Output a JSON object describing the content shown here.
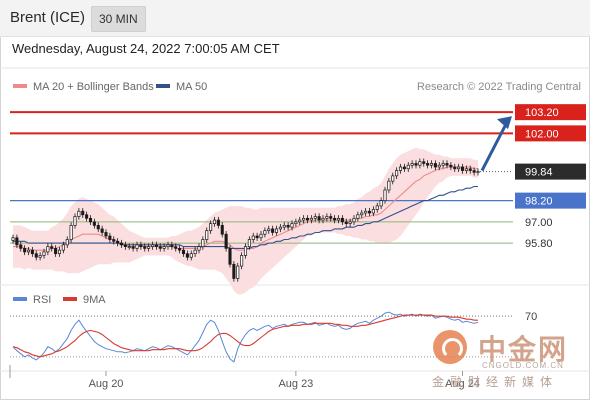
{
  "header": {
    "instrument": "Brent (ICE)",
    "timeframe": "30 MIN",
    "datetime": "Wednesday, August 24, 2022 7:00:05 AM CET"
  },
  "legend": {
    "ma20_label": "MA 20 + Bollinger Bands",
    "ma50_label": "MA 50",
    "credit": "Research © 2022 Trading Central",
    "rsi_label": "RSI",
    "ma9_label": "9MA"
  },
  "watermark": {
    "name": "中金网",
    "url": "CNGOLD.COM.CN",
    "subtitle": "金融财经新媒体"
  },
  "colors": {
    "resistance": "#d9221c",
    "support": "#4a74c9",
    "support_lower": "#8db47a",
    "ma20": "#f08a8a",
    "ma50": "#344f8a",
    "band_fill": "#fbdfe0",
    "rsi": "#5b86d6",
    "rsi_ma": "#d93a30",
    "price_badge": "#2c2c2c",
    "arrow": "#2f5b9c",
    "candle_up": "#1a1a1a",
    "candle_down": "#1a1a1a"
  },
  "chart_data": {
    "type": "candlestick",
    "instrument": "Brent (ICE)",
    "interval": "30 MIN",
    "x_ticks": [
      "Aug 20",
      "Aug 23",
      "Aug 24"
    ],
    "price_ylim": [
      93.6,
      104.0
    ],
    "current_price": 99.84,
    "levels": [
      {
        "value": 103.2,
        "label": "103.20",
        "kind": "resistance"
      },
      {
        "value": 102.0,
        "label": "102.00",
        "kind": "resistance"
      },
      {
        "value": 98.2,
        "label": "98.20",
        "kind": "support"
      },
      {
        "value": 97.0,
        "label": "97.00",
        "kind": "support"
      },
      {
        "value": 95.8,
        "label": "95.80",
        "kind": "support"
      }
    ],
    "close": [
      96.1,
      95.7,
      95.5,
      95.3,
      95.4,
      95.2,
      95.0,
      95.1,
      95.3,
      95.6,
      95.5,
      95.2,
      95.4,
      95.7,
      96.0,
      96.8,
      97.3,
      97.6,
      97.4,
      97.2,
      97.0,
      96.8,
      96.6,
      96.4,
      96.2,
      96.0,
      95.9,
      95.8,
      95.7,
      95.6,
      95.6,
      95.5,
      95.7,
      95.6,
      95.5,
      95.6,
      95.7,
      95.6,
      95.5,
      95.6,
      95.7,
      95.6,
      95.5,
      95.4,
      95.2,
      95.0,
      95.2,
      95.4,
      95.6,
      96.0,
      96.5,
      96.9,
      97.1,
      96.8,
      96.3,
      95.5,
      94.6,
      93.8,
      94.5,
      95.1,
      95.6,
      96.0,
      96.2,
      96.1,
      96.3,
      96.5,
      96.6,
      96.4,
      96.6,
      96.7,
      96.8,
      96.7,
      96.9,
      97.0,
      97.1,
      97.2,
      97.1,
      97.2,
      97.3,
      97.1,
      97.2,
      97.3,
      97.2,
      97.1,
      97.2,
      97.0,
      96.9,
      97.0,
      97.2,
      97.4,
      97.5,
      97.6,
      97.5,
      97.7,
      97.9,
      98.2,
      98.8,
      99.3,
      99.6,
      99.9,
      100.1,
      100.0,
      100.2,
      100.3,
      100.2,
      100.4,
      100.3,
      100.2,
      100.3,
      100.1,
      100.2,
      100.3,
      100.2,
      100.1,
      100.0,
      100.1,
      99.9,
      100.0,
      99.9,
      99.8,
      99.84
    ],
    "ma20": [
      95.6,
      95.6,
      95.6,
      95.5,
      95.5,
      95.4,
      95.4,
      95.4,
      95.4,
      95.4,
      95.5,
      95.5,
      95.6,
      95.7,
      95.8,
      96.0,
      96.1,
      96.2,
      96.3,
      96.3,
      96.3,
      96.3,
      96.3,
      96.2,
      96.1,
      96.0,
      96.0,
      95.9,
      95.8,
      95.7,
      95.6,
      95.6,
      95.6,
      95.6,
      95.6,
      95.6,
      95.6,
      95.6,
      95.6,
      95.6,
      95.6,
      95.6,
      95.5,
      95.5,
      95.5,
      95.5,
      95.5,
      95.5,
      95.5,
      95.6,
      95.7,
      95.8,
      95.9,
      95.9,
      95.9,
      95.8,
      95.7,
      95.5,
      95.4,
      95.4,
      95.4,
      95.5,
      95.5,
      95.6,
      95.8,
      95.9,
      96.0,
      96.1,
      96.2,
      96.3,
      96.4,
      96.5,
      96.6,
      96.7,
      96.8,
      96.9,
      97.0,
      97.0,
      97.1,
      97.1,
      97.1,
      97.1,
      97.1,
      97.1,
      97.1,
      97.1,
      97.1,
      97.1,
      97.1,
      97.2,
      97.2,
      97.3,
      97.3,
      97.4,
      97.4,
      97.5,
      97.7,
      97.9,
      98.1,
      98.3,
      98.5,
      98.7,
      98.9,
      99.1,
      99.3,
      99.4,
      99.6,
      99.7,
      99.8,
      99.9,
      100.0,
      100.0,
      100.1,
      100.1,
      100.1,
      100.1,
      100.1,
      100.1,
      100.1,
      100.0,
      100.0
    ],
    "ma50": [
      95.9,
      95.9,
      95.9,
      95.9,
      95.8,
      95.8,
      95.8,
      95.8,
      95.8,
      95.8,
      95.8,
      95.8,
      95.8,
      95.8,
      95.8,
      95.8,
      95.8,
      95.8,
      95.8,
      95.8,
      95.8,
      95.8,
      95.8,
      95.8,
      95.8,
      95.8,
      95.8,
      95.8,
      95.7,
      95.7,
      95.7,
      95.7,
      95.7,
      95.7,
      95.7,
      95.7,
      95.7,
      95.7,
      95.7,
      95.7,
      95.7,
      95.7,
      95.7,
      95.7,
      95.6,
      95.6,
      95.6,
      95.6,
      95.6,
      95.6,
      95.6,
      95.6,
      95.6,
      95.6,
      95.6,
      95.6,
      95.5,
      95.5,
      95.5,
      95.5,
      95.5,
      95.5,
      95.6,
      95.6,
      95.7,
      95.7,
      95.8,
      95.8,
      95.9,
      95.9,
      96.0,
      96.0,
      96.1,
      96.1,
      96.2,
      96.2,
      96.3,
      96.3,
      96.4,
      96.4,
      96.5,
      96.5,
      96.5,
      96.6,
      96.6,
      96.6,
      96.7,
      96.7,
      96.7,
      96.8,
      96.8,
      96.9,
      96.9,
      97.0,
      97.0,
      97.1,
      97.2,
      97.3,
      97.4,
      97.5,
      97.6,
      97.7,
      97.8,
      97.9,
      98.0,
      98.1,
      98.2,
      98.2,
      98.3,
      98.4,
      98.5,
      98.5,
      98.6,
      98.7,
      98.7,
      98.8,
      98.8,
      98.9,
      98.9,
      99.0,
      99.0
    ],
    "bb_width": [
      1.2,
      1.2,
      1.2,
      1.2,
      1.1,
      1.1,
      1.1,
      1.1,
      1.1,
      1.1,
      1.2,
      1.3,
      1.4,
      1.5,
      1.7,
      1.9,
      2.0,
      2.1,
      2.1,
      2.0,
      1.9,
      1.8,
      1.7,
      1.6,
      1.5,
      1.4,
      1.3,
      1.2,
      1.1,
      1.0,
      0.9,
      0.8,
      0.7,
      0.6,
      0.5,
      0.5,
      0.5,
      0.5,
      0.5,
      0.5,
      0.5,
      0.6,
      0.7,
      0.8,
      0.9,
      1.0,
      1.0,
      1.1,
      1.2,
      1.3,
      1.4,
      1.5,
      1.6,
      1.7,
      1.8,
      2.0,
      2.2,
      2.4,
      2.5,
      2.5,
      2.4,
      2.3,
      2.2,
      2.1,
      2.0,
      1.9,
      1.8,
      1.7,
      1.6,
      1.5,
      1.4,
      1.3,
      1.2,
      1.1,
      1.0,
      0.9,
      0.8,
      0.8,
      0.7,
      0.7,
      0.7,
      0.7,
      0.7,
      0.7,
      0.8,
      0.8,
      0.9,
      0.9,
      1.0,
      1.1,
      1.2,
      1.3,
      1.4,
      1.5,
      1.6,
      1.7,
      1.9,
      2.1,
      2.2,
      2.3,
      2.3,
      2.2,
      2.1,
      2.0,
      1.9,
      1.7,
      1.5,
      1.3,
      1.1,
      0.9,
      0.8,
      0.7,
      0.6,
      0.5,
      0.5,
      0.5,
      0.5,
      0.5,
      0.5,
      0.5,
      0.5
    ],
    "rsi_level_label": "70",
    "rsi_ylim": [
      20,
      80
    ],
    "rsi": [
      40,
      36,
      33,
      30,
      32,
      29,
      27,
      30,
      34,
      40,
      38,
      35,
      38,
      43,
      48,
      56,
      62,
      66,
      60,
      55,
      50,
      45,
      42,
      40,
      38,
      37,
      36,
      35,
      35,
      34,
      35,
      36,
      38,
      37,
      36,
      38,
      40,
      39,
      37,
      39,
      41,
      40,
      38,
      36,
      34,
      32,
      36,
      41,
      46,
      54,
      62,
      66,
      64,
      56,
      45,
      35,
      28,
      25,
      38,
      46,
      52,
      56,
      58,
      56,
      58,
      60,
      61,
      58,
      60,
      61,
      62,
      60,
      62,
      63,
      64,
      64,
      62,
      63,
      64,
      61,
      62,
      63,
      61,
      60,
      61,
      58,
      57,
      58,
      61,
      63,
      64,
      65,
      63,
      66,
      68,
      70,
      73,
      74,
      72,
      71,
      72,
      70,
      71,
      72,
      70,
      72,
      71,
      70,
      71,
      68,
      69,
      70,
      69,
      67,
      66,
      67,
      64,
      65,
      64,
      63,
      64
    ],
    "rsi_ma": [
      40,
      39,
      37,
      35,
      34,
      32,
      31,
      30,
      31,
      32,
      33,
      35,
      36,
      38,
      40,
      43,
      46,
      50,
      53,
      55,
      56,
      55,
      54,
      52,
      49,
      46,
      43,
      41,
      39,
      38,
      37,
      36,
      36,
      36,
      36,
      36,
      37,
      37,
      37,
      37,
      38,
      38,
      38,
      38,
      37,
      36,
      36,
      36,
      37,
      39,
      42,
      45,
      49,
      52,
      53,
      53,
      51,
      48,
      45,
      42,
      41,
      41,
      43,
      46,
      49,
      52,
      55,
      57,
      58,
      59,
      60,
      60,
      61,
      61,
      61,
      62,
      62,
      62,
      63,
      63,
      63,
      63,
      63,
      62,
      62,
      61,
      61,
      60,
      60,
      60,
      61,
      61,
      62,
      63,
      64,
      65,
      66,
      67,
      68,
      69,
      70,
      71,
      71,
      71,
      71,
      71,
      71,
      71,
      71,
      70,
      70,
      70,
      70,
      69,
      69,
      69,
      68,
      67,
      67,
      66,
      66
    ]
  }
}
